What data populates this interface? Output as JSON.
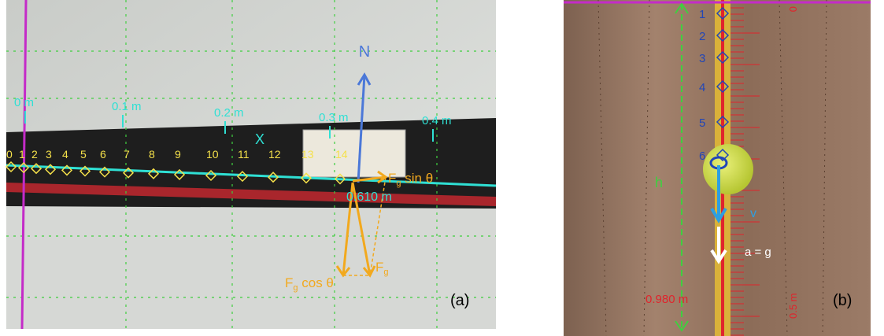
{
  "panel_a": {
    "label": "(a)",
    "scale_labels": [
      "0 m",
      "0.1 m",
      "0.2 m",
      "0.3 m",
      "0.4 m"
    ],
    "axis_label": "X",
    "point_labels": [
      "0",
      "1",
      "2",
      "3",
      "4",
      "5",
      "6",
      "7",
      "8",
      "9",
      "10",
      "11",
      "12",
      "13",
      "14"
    ],
    "normal_force": "N",
    "tangential_force": {
      "symbol": "F",
      "subscript": "g",
      "suffix": " sin θ"
    },
    "weight": {
      "symbol": "F",
      "subscript": "g"
    },
    "perpendicular_force": {
      "symbol": "F",
      "subscript": "g",
      "suffix": " cos θ"
    },
    "length_label": "0.610 m"
  },
  "panel_b": {
    "label": "(b)",
    "point_labels": [
      "1",
      "2",
      "3",
      "4",
      "5",
      "6"
    ],
    "height_label": "h",
    "velocity_label": "v",
    "acceleration_label": "a = g",
    "length_label": "0.980 m",
    "ruler_labels": [
      "0",
      "0.5 m"
    ]
  }
}
